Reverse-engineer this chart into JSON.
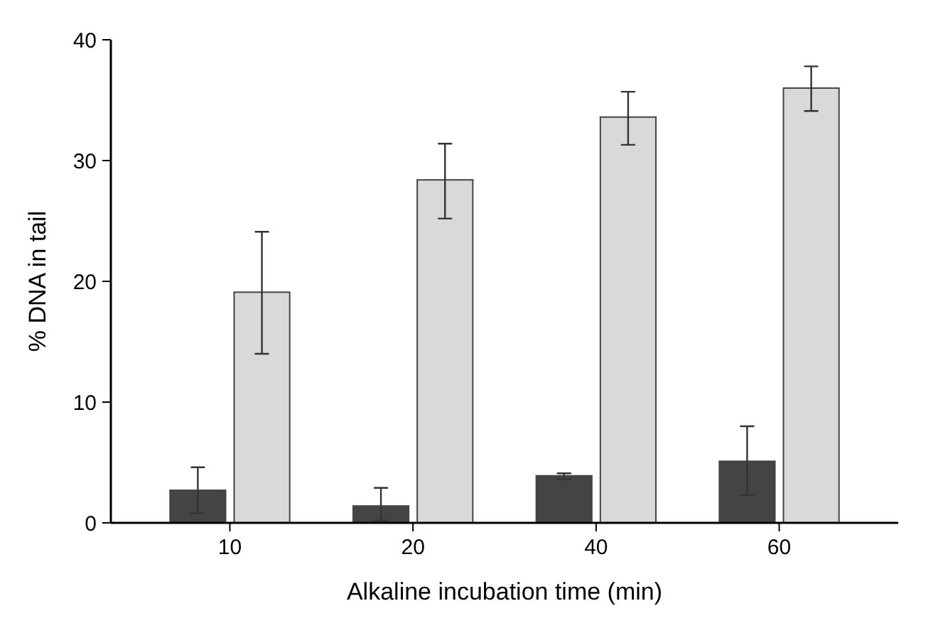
{
  "chart_data": {
    "type": "bar",
    "xlabel": "Alkaline incubation time (min)",
    "ylabel": "% DNA in tail",
    "categories": [
      "10",
      "20",
      "40",
      "60"
    ],
    "series": [
      {
        "color": "#444444",
        "values": [
          2.7,
          1.4,
          3.9,
          5.1
        ],
        "errors": [
          [
            0.8,
            4.6
          ],
          [
            0.2,
            2.9
          ],
          [
            3.6,
            4.1
          ],
          [
            2.3,
            8.0
          ]
        ]
      },
      {
        "color": "#d9d9d9",
        "values": [
          19.1,
          28.4,
          33.6,
          36.0
        ],
        "errors": [
          [
            14.0,
            24.1
          ],
          [
            25.2,
            31.4
          ],
          [
            31.3,
            35.7
          ],
          [
            34.1,
            37.8
          ]
        ]
      }
    ],
    "ylim": [
      0,
      40
    ],
    "yticks": [
      0,
      10,
      20,
      30,
      40
    ],
    "grid": false
  }
}
